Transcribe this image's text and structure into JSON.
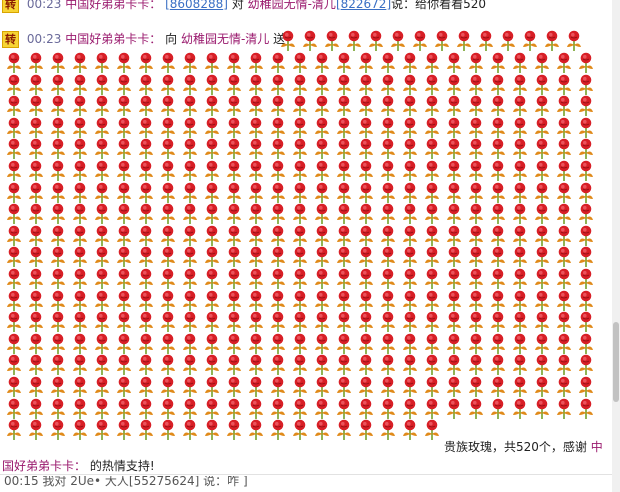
{
  "messages": [
    {
      "badge": "转",
      "time": "00:23",
      "user": "中国好弟弟卡卡：",
      "bracket_open": "[",
      "user_id": "8608288",
      "bracket_close": "]",
      "verb": "对",
      "target": "幼稚园无情-清儿",
      "target_id_open": "[",
      "target_id": "822672",
      "target_id_close": "]",
      "said": "说：",
      "text": "给你看看520"
    },
    {
      "badge": "转",
      "time": "00:23",
      "user": "中国好弟弟卡卡：",
      "verb": "向",
      "target": "幼稚园无情-清儿",
      "action": "送"
    }
  ],
  "gift": {
    "name_line": "贵族玫瑰，共520个，感谢",
    "thanks_user_part1": "中",
    "thanks_user_part2": "国好弟弟卡卡：",
    "thanks_end": "的热情支持!",
    "icon": "rose-icon",
    "count": 520
  },
  "partial_bottom": "00:15 我对 2Ue• 大人[55275624] 说：咋 ]",
  "colors": {
    "badge_bg": "#f7d433",
    "user": "#9a1a6e",
    "link": "#3a6fc4",
    "time": "#6a6a9a",
    "rose_red": "#d81f26",
    "stem_green": "#6a9a1a",
    "leaf_orange": "#e08a1a"
  }
}
